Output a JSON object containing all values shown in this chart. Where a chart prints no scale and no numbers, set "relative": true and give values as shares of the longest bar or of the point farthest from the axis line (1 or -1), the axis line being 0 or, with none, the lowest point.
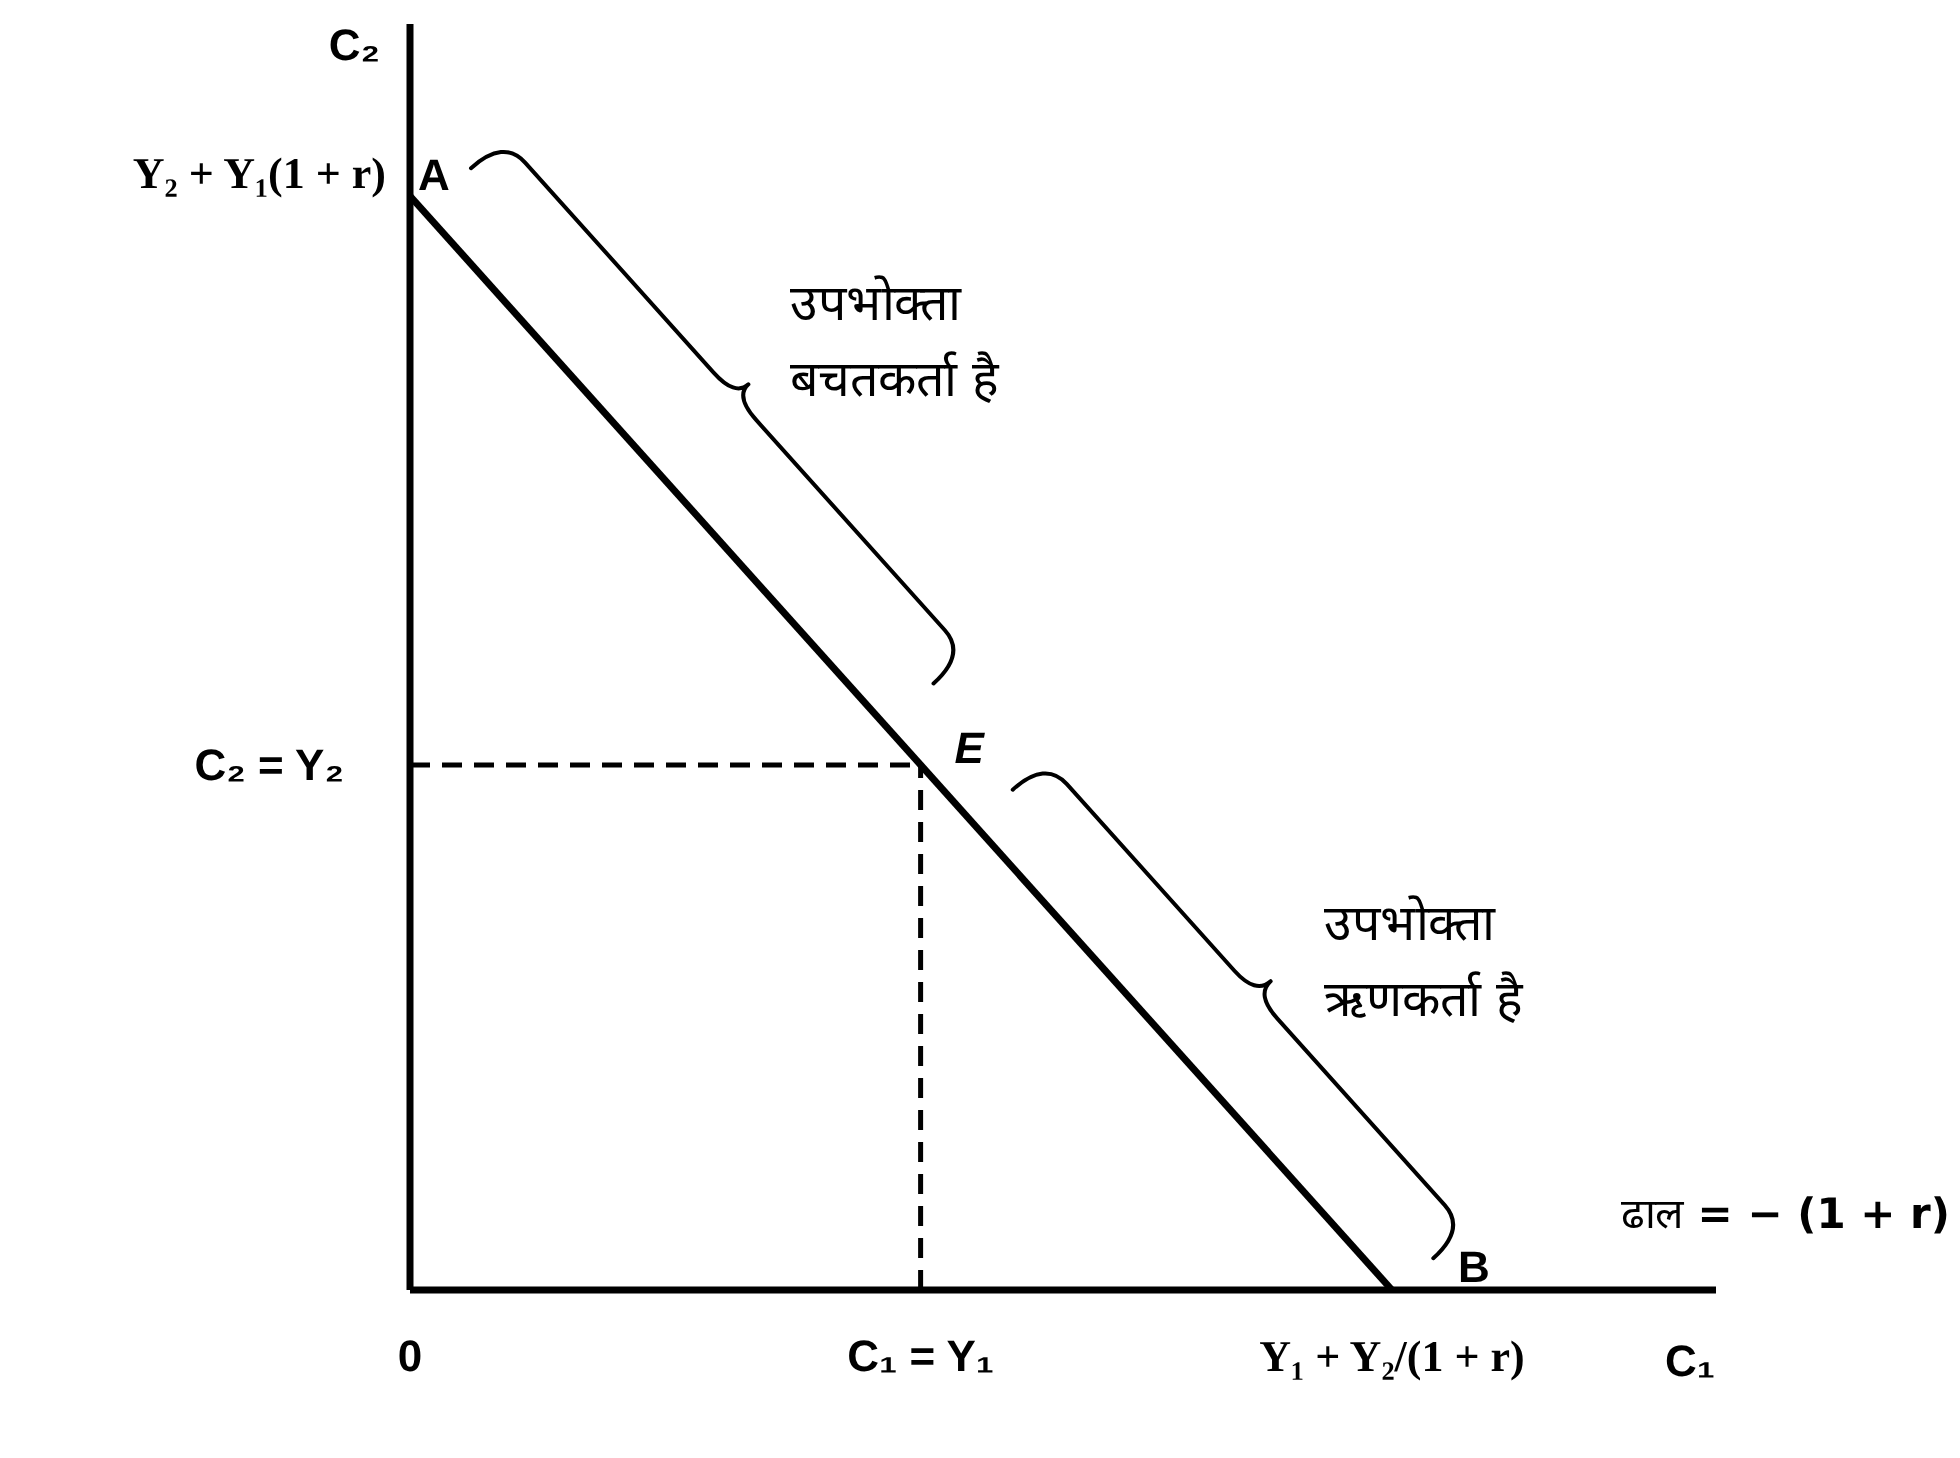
{
  "chart_data": {
    "type": "line",
    "xlabel": "C₁",
    "ylabel": "C₂",
    "relative": true,
    "x": [
      0,
      0.52,
      1
    ],
    "xlim": [
      0,
      1.33
    ],
    "xticks": [
      0,
      {
        "value": 0.52,
        "label": "C₁ = Y₁"
      },
      {
        "value": 1,
        "label": "Y₁ + Y₂/(1 + r)"
      }
    ],
    "series": [
      {
        "color": "#000000",
        "values": [
          1,
          0.48,
          0
        ]
      },
      {
        "color": "#000000",
        "line_style": "dashed",
        "values": [
          0.48,
          0.48,
          null
        ]
      },
      {
        "color": "#000000",
        "line_style": "dashed",
        "x": [
          0.52,
          0.52
        ],
        "values": [
          0,
          0.48
        ]
      }
    ],
    "annotations": [
      {
        "text": "A",
        "x": 0,
        "y": 1
      },
      {
        "text": "E",
        "x": 0.52,
        "y": 0.48
      },
      {
        "text": "B",
        "x": 1,
        "y": 0
      },
      "Y₂ + Y₁(1 + r)",
      "C₂ = Y₂",
      "उपभोक्ता बचतकर्ता है",
      "उपभोक्ता ऋणकर्ता है",
      "ढाल = − (1 + r)"
    ]
  }
}
